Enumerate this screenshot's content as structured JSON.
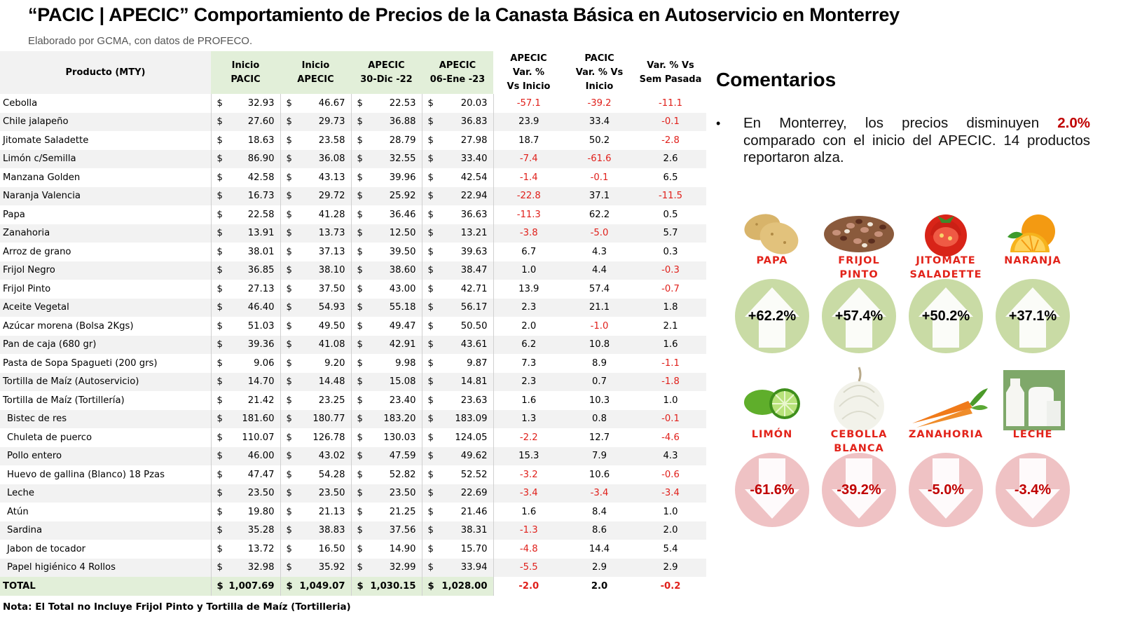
{
  "header": {
    "title": "“PACIC | APECIC” Comportamiento de Precios de la Canasta Básica en Autoservicio en Monterrey",
    "subtitle": "Elaborado por GCMA, con datos de PROFECO."
  },
  "table": {
    "headers": {
      "product": "Producto (MTY)",
      "inicio_pacic": [
        "Inicio",
        "PACIC"
      ],
      "inicio_apecic": [
        "Inicio",
        "APECIC"
      ],
      "apecic_30dic": [
        "APECIC",
        "30-Dic -22"
      ],
      "apecic_06ene": [
        "APECIC",
        "06-Ene -23"
      ],
      "var_apecic": [
        "APECIC",
        "Var. %",
        "Vs  Inicio"
      ],
      "var_pacic": [
        "PACIC",
        "Var. % Vs",
        "Inicio"
      ],
      "var_sem": [
        "Var. % Vs",
        "Sem Pasada"
      ]
    },
    "currency": "$",
    "rows": [
      {
        "product": "Cebolla",
        "indent": false,
        "p1": "32.93",
        "p2": "46.67",
        "p3": "22.53",
        "p4": "20.03",
        "v1": "-57.1",
        "v2": "-39.2",
        "v3": "-11.1"
      },
      {
        "product": "Chile jalapeño",
        "indent": false,
        "p1": "27.60",
        "p2": "29.73",
        "p3": "36.88",
        "p4": "36.83",
        "v1": "23.9",
        "v2": "33.4",
        "v3": "-0.1"
      },
      {
        "product": "Jitomate Saladette",
        "indent": false,
        "p1": "18.63",
        "p2": "23.58",
        "p3": "28.79",
        "p4": "27.98",
        "v1": "18.7",
        "v2": "50.2",
        "v3": "-2.8"
      },
      {
        "product": "Limón c/Semilla",
        "indent": false,
        "p1": "86.90",
        "p2": "36.08",
        "p3": "32.55",
        "p4": "33.40",
        "v1": "-7.4",
        "v2": "-61.6",
        "v3": "2.6"
      },
      {
        "product": "Manzana Golden",
        "indent": false,
        "p1": "42.58",
        "p2": "43.13",
        "p3": "39.96",
        "p4": "42.54",
        "v1": "-1.4",
        "v2": "-0.1",
        "v3": "6.5"
      },
      {
        "product": "Naranja Valencia",
        "indent": false,
        "p1": "16.73",
        "p2": "29.72",
        "p3": "25.92",
        "p4": "22.94",
        "v1": "-22.8",
        "v2": "37.1",
        "v3": "-11.5"
      },
      {
        "product": "Papa",
        "indent": false,
        "p1": "22.58",
        "p2": "41.28",
        "p3": "36.46",
        "p4": "36.63",
        "v1": "-11.3",
        "v2": "62.2",
        "v3": "0.5"
      },
      {
        "product": "Zanahoria",
        "indent": false,
        "p1": "13.91",
        "p2": "13.73",
        "p3": "12.50",
        "p4": "13.21",
        "v1": "-3.8",
        "v2": "-5.0",
        "v3": "5.7"
      },
      {
        "product": "Arroz de grano",
        "indent": false,
        "p1": "38.01",
        "p2": "37.13",
        "p3": "39.50",
        "p4": "39.63",
        "v1": "6.7",
        "v2": "4.3",
        "v3": "0.3"
      },
      {
        "product": "Frijol Negro",
        "indent": false,
        "p1": "36.85",
        "p2": "38.10",
        "p3": "38.60",
        "p4": "38.47",
        "v1": "1.0",
        "v2": "4.4",
        "v3": "-0.3"
      },
      {
        "product": "Frijol Pinto",
        "indent": false,
        "p1": "27.13",
        "p2": "37.50",
        "p3": "43.00",
        "p4": "42.71",
        "v1": "13.9",
        "v2": "57.4",
        "v3": "-0.7"
      },
      {
        "product": "Aceite Vegetal",
        "indent": false,
        "p1": "46.40",
        "p2": "54.93",
        "p3": "55.18",
        "p4": "56.17",
        "v1": "2.3",
        "v2": "21.1",
        "v3": "1.8"
      },
      {
        "product": "Azúcar morena (Bolsa 2Kgs)",
        "indent": false,
        "p1": "51.03",
        "p2": "49.50",
        "p3": "49.47",
        "p4": "50.50",
        "v1": "2.0",
        "v2": "-1.0",
        "v3": "2.1"
      },
      {
        "product": "Pan de caja (680 gr)",
        "indent": false,
        "p1": "39.36",
        "p2": "41.08",
        "p3": "42.91",
        "p4": "43.61",
        "v1": "6.2",
        "v2": "10.8",
        "v3": "1.6"
      },
      {
        "product": "Pasta de Sopa Spagueti (200 grs)",
        "indent": false,
        "p1": "9.06",
        "p2": "9.20",
        "p3": "9.98",
        "p4": "9.87",
        "v1": "7.3",
        "v2": "8.9",
        "v3": "-1.1"
      },
      {
        "product": "Tortilla de Maíz (Autoservicio)",
        "indent": false,
        "p1": "14.70",
        "p2": "14.48",
        "p3": "15.08",
        "p4": "14.81",
        "v1": "2.3",
        "v2": "0.7",
        "v3": "-1.8"
      },
      {
        "product": "Tortilla de Maíz (Tortillería)",
        "indent": false,
        "p1": "21.42",
        "p2": "23.25",
        "p3": "23.40",
        "p4": "23.63",
        "v1": "1.6",
        "v2": "10.3",
        "v3": "1.0"
      },
      {
        "product": "Bistec de res",
        "indent": true,
        "p1": "181.60",
        "p2": "180.77",
        "p3": "183.20",
        "p4": "183.09",
        "v1": "1.3",
        "v2": "0.8",
        "v3": "-0.1"
      },
      {
        "product": "Chuleta de puerco",
        "indent": true,
        "p1": "110.07",
        "p2": "126.78",
        "p3": "130.03",
        "p4": "124.05",
        "v1": "-2.2",
        "v2": "12.7",
        "v3": "-4.6"
      },
      {
        "product": "Pollo entero",
        "indent": true,
        "p1": "46.00",
        "p2": "43.02",
        "p3": "47.59",
        "p4": "49.62",
        "v1": "15.3",
        "v2": "7.9",
        "v3": "4.3"
      },
      {
        "product": "Huevo de gallina (Blanco) 18 Pzas",
        "indent": true,
        "p1": "47.47",
        "p2": "54.28",
        "p3": "52.82",
        "p4": "52.52",
        "v1": "-3.2",
        "v2": "10.6",
        "v3": "-0.6"
      },
      {
        "product": "Leche",
        "indent": true,
        "p1": "23.50",
        "p2": "23.50",
        "p3": "23.50",
        "p4": "22.69",
        "v1": "-3.4",
        "v2": "-3.4",
        "v3": "-3.4"
      },
      {
        "product": "Atún",
        "indent": true,
        "p1": "19.80",
        "p2": "21.13",
        "p3": "21.25",
        "p4": "21.46",
        "v1": "1.6",
        "v2": "8.4",
        "v3": "1.0"
      },
      {
        "product": "Sardina",
        "indent": true,
        "p1": "35.28",
        "p2": "38.83",
        "p3": "37.56",
        "p4": "38.31",
        "v1": "-1.3",
        "v2": "8.6",
        "v3": "2.0"
      },
      {
        "product": "Jabon de tocador",
        "indent": true,
        "p1": "13.72",
        "p2": "16.50",
        "p3": "14.90",
        "p4": "15.70",
        "v1": "-4.8",
        "v2": "14.4",
        "v3": "5.4"
      },
      {
        "product": "Papel higiénico 4 Rollos",
        "indent": true,
        "p1": "32.98",
        "p2": "35.92",
        "p3": "32.99",
        "p4": "33.94",
        "v1": "-5.5",
        "v2": "2.9",
        "v3": "2.9"
      }
    ],
    "total": {
      "product": "TOTAL",
      "p1": "1,007.69",
      "p2": "1,049.07",
      "p3": "1,030.15",
      "p4": "1,028.00",
      "v1": "-2.0",
      "v2": "2.0",
      "v3": "-0.2"
    },
    "note": "Nota: El Total no Incluye Frijol Pinto y Tortilla de Maíz (Tortilleria)"
  },
  "comments": {
    "title": "Comentarios",
    "bullet": "•",
    "text_before": "En Monterrey, los precios disminuyen ",
    "highlight": "2.0%",
    "text_after": " comparado con el inicio del APECIC. 14 productos reportaron alza."
  },
  "increases": [
    {
      "name": [
        "PAPA"
      ],
      "pct": "+62.2%",
      "icon": "potato-icon"
    },
    {
      "name": [
        "FRIJOL",
        "PINTO"
      ],
      "pct": "+57.4%",
      "icon": "beans-icon"
    },
    {
      "name": [
        "JITOMATE",
        "SALADETTE"
      ],
      "pct": "+50.2%",
      "icon": "tomato-icon"
    },
    {
      "name": [
        "NARANJA"
      ],
      "pct": "+37.1%",
      "icon": "orange-icon"
    }
  ],
  "decreases": [
    {
      "name": [
        "LIMÓN"
      ],
      "pct": "-61.6%",
      "icon": "lime-icon"
    },
    {
      "name": [
        "CEBOLLA",
        "BLANCA"
      ],
      "pct": "-39.2%",
      "icon": "onion-icon"
    },
    {
      "name": [
        "ZANAHORIA"
      ],
      "pct": "-5.0%",
      "icon": "carrot-icon"
    },
    {
      "name": [
        "LECHE"
      ],
      "pct": "-3.4%",
      "icon": "milk-icon"
    }
  ],
  "colors": {
    "negative": "#e0201b",
    "header_green": "#e2efd9",
    "up_disc": "#c9dba5",
    "down_disc": "#efc2c4",
    "accent_red": "#e2231a"
  }
}
